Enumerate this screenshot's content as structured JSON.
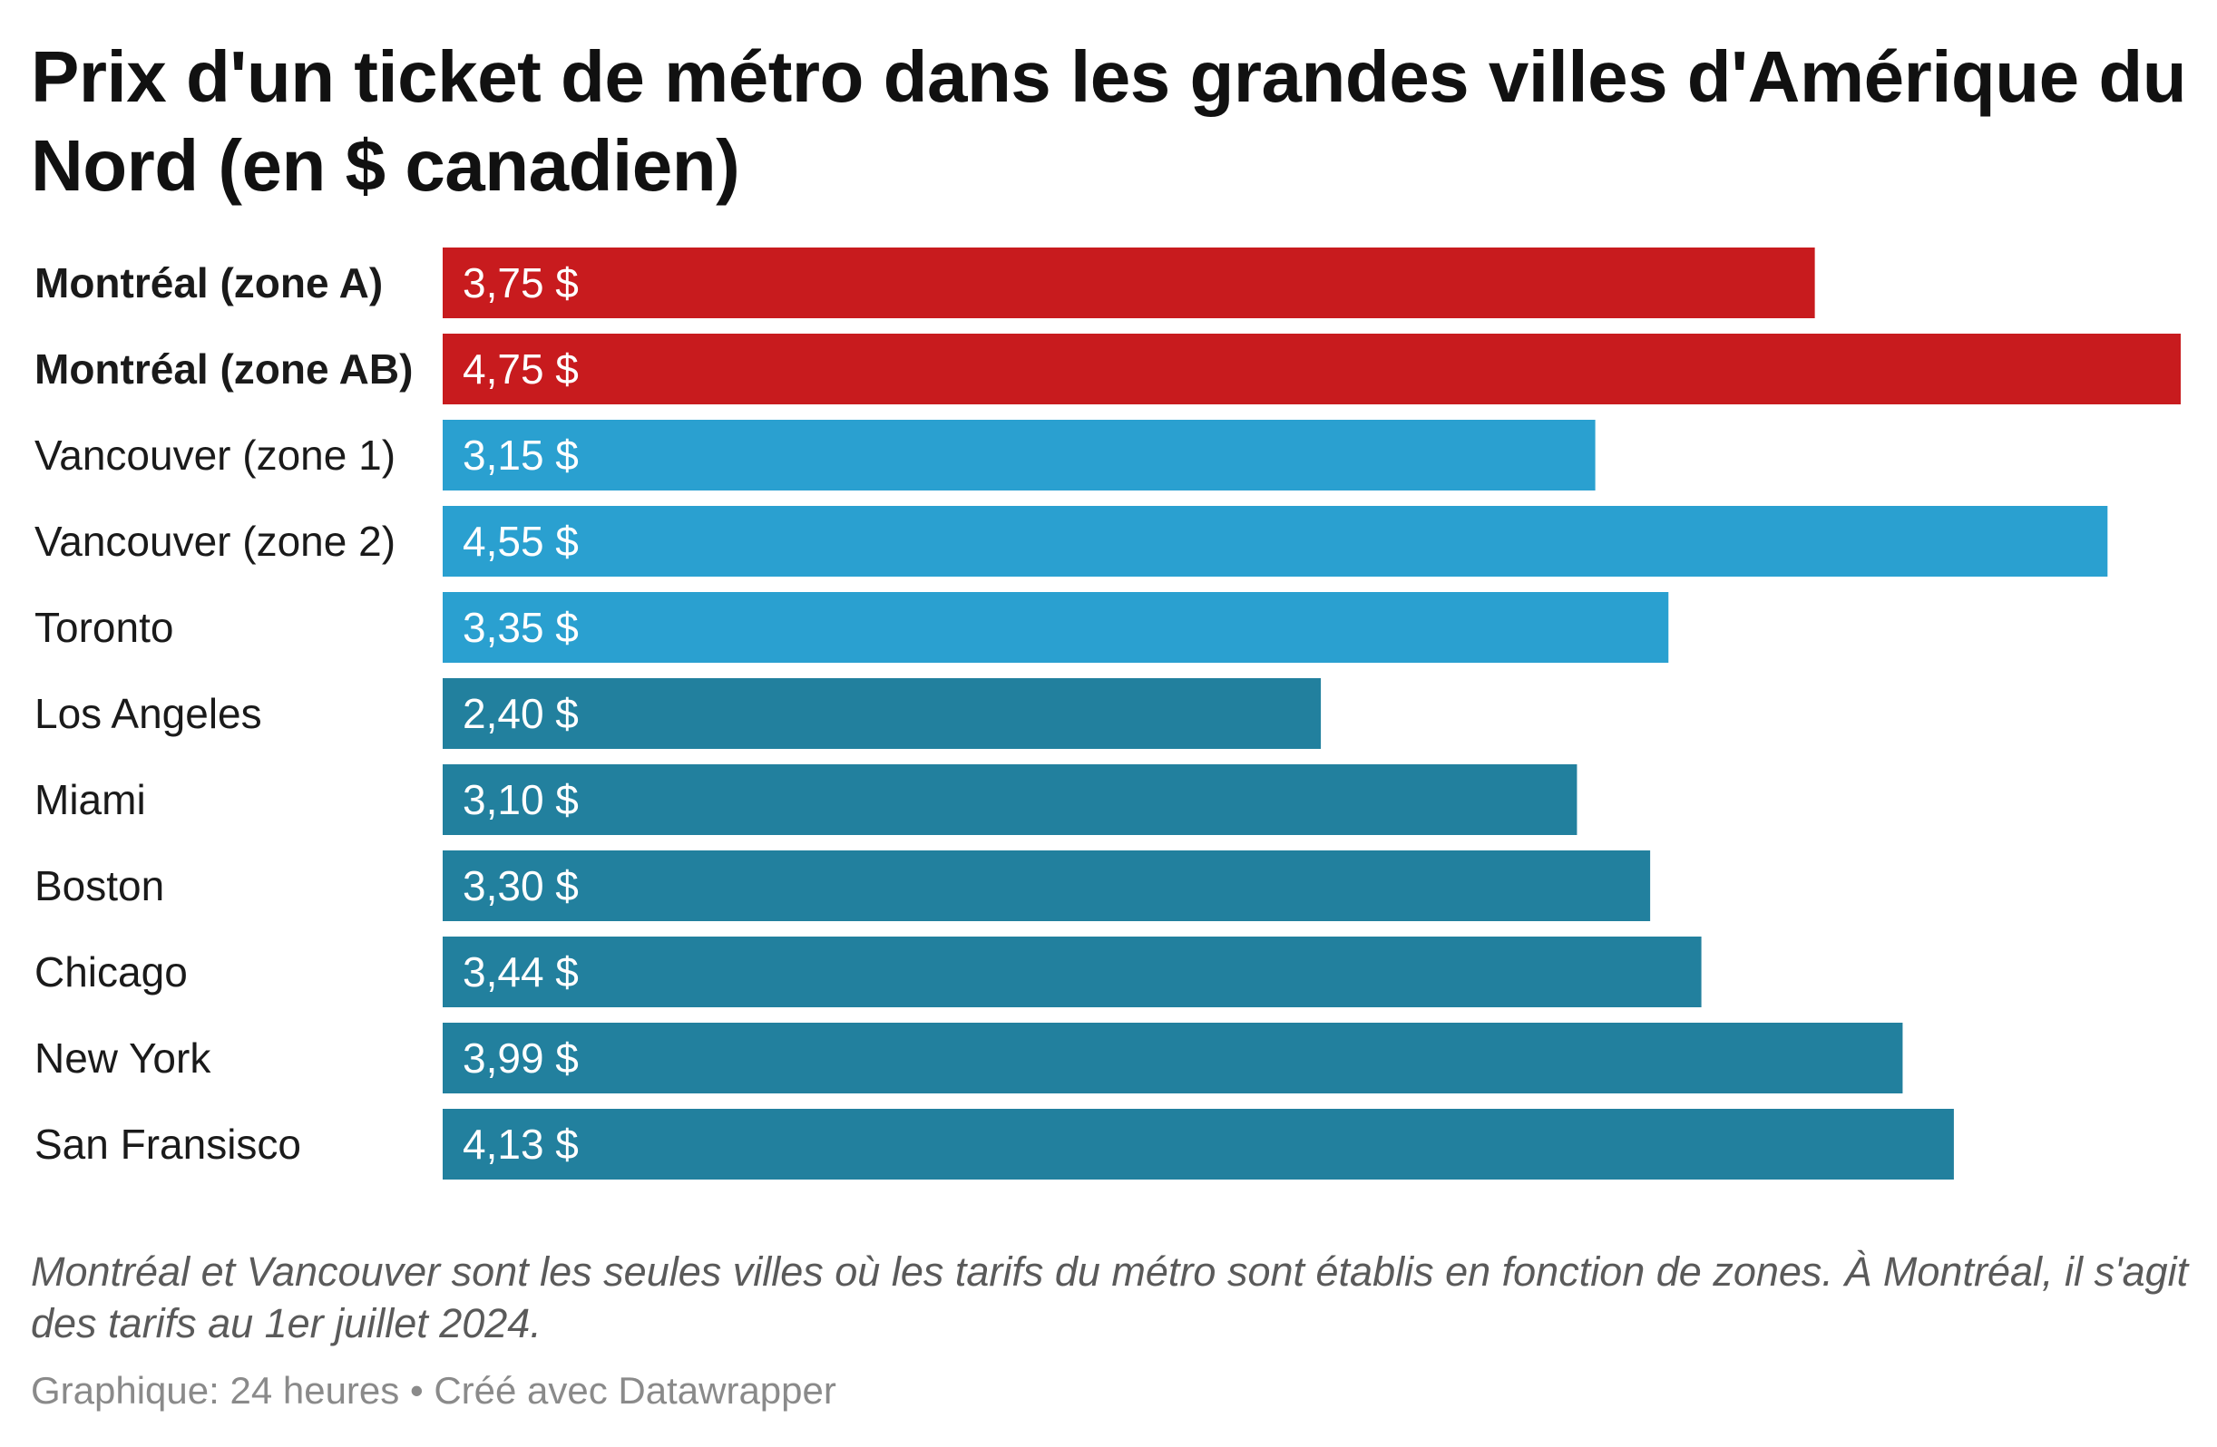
{
  "title": "Prix d'un ticket de métro dans les grandes villes d'Amérique du Nord (en $ canadien)",
  "notes": "Montréal et Vancouver sont les seules villes où les tarifs du métro sont établis en fonction de zones. À Montréal, il s'agit des tarifs au 1er juillet 2024.",
  "source": "Graphique: 24 heures • Créé avec Datawrapper",
  "colors": {
    "montreal": "#c81b1e",
    "canada": "#2aa0d0",
    "usa": "#22809e",
    "value_label": "#ffffff"
  },
  "chart_data": {
    "type": "bar",
    "orientation": "horizontal",
    "xlim": [
      0,
      4.75
    ],
    "grid": false,
    "categories": [
      "Montréal (zone A)",
      "Montréal (zone AB)",
      "Vancouver (zone 1)",
      "Vancouver (zone 2)",
      "Toronto",
      "Los Angeles",
      "Miami",
      "Boston",
      "Chicago",
      "New York",
      "San Fransisco"
    ],
    "values": [
      3.75,
      4.75,
      3.15,
      4.55,
      3.35,
      2.4,
      3.1,
      3.3,
      3.44,
      3.99,
      4.13
    ],
    "value_labels": [
      "3,75 $",
      "4,75 $",
      "3,15 $",
      "4,55 $",
      "3,35 $",
      "2,40 $",
      "3,10 $",
      "3,30 $",
      "3,44 $",
      "3,99 $",
      "4,13 $"
    ],
    "bold_categories": [
      "Montréal (zone A)",
      "Montréal (zone AB)"
    ],
    "bar_color_groups": [
      "montreal",
      "montreal",
      "canada",
      "canada",
      "canada",
      "usa",
      "usa",
      "usa",
      "usa",
      "usa",
      "usa"
    ]
  }
}
